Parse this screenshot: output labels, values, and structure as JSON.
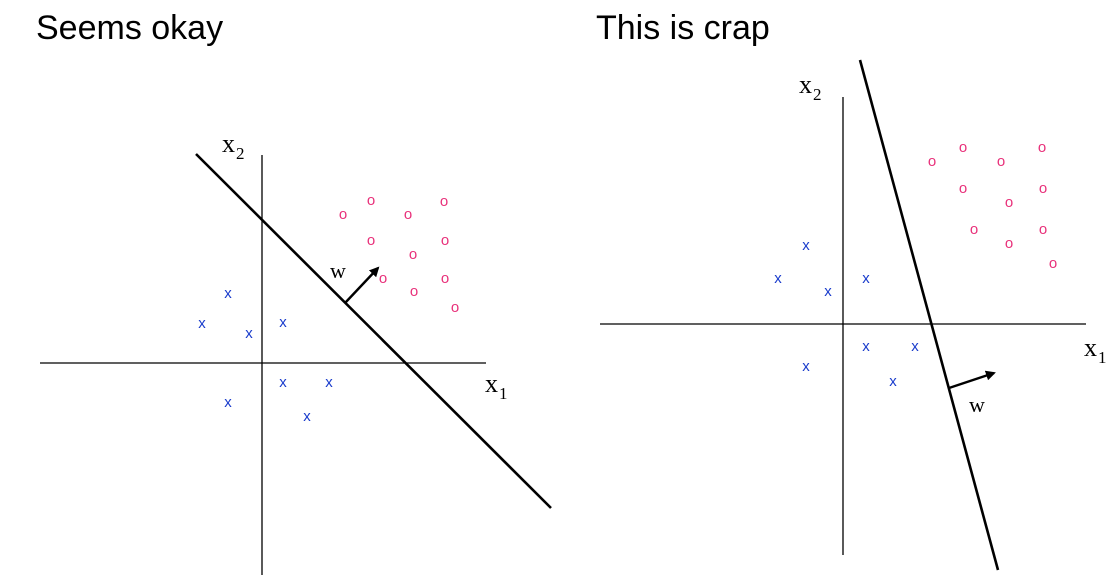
{
  "panels": [
    {
      "title": "Seems okay",
      "x1_label": "x",
      "x1_sub": "1",
      "x2_label": "x",
      "x2_sub": "2",
      "w_label": "w",
      "x_marker": "x",
      "o_marker": "o"
    },
    {
      "title": "This is crap",
      "x1_label": "x",
      "x1_sub": "1",
      "x2_label": "x",
      "x2_sub": "2",
      "w_label": "w",
      "x_marker": "x",
      "o_marker": "o"
    }
  ],
  "colors": {
    "x_class": "#1a3ccc",
    "o_class": "#e8307a"
  }
}
